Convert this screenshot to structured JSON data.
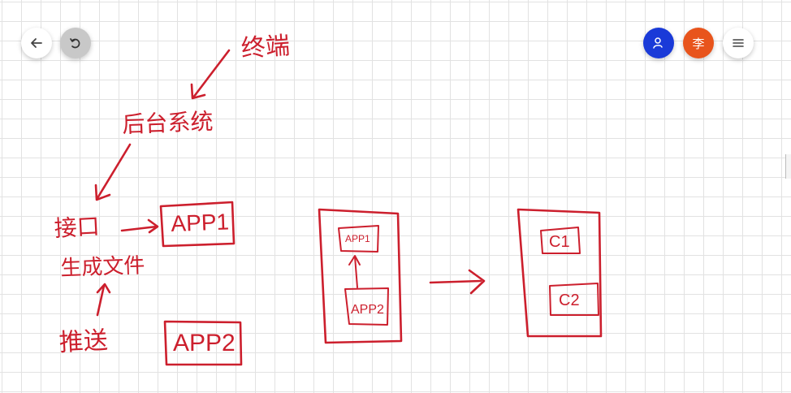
{
  "toolbar": {
    "back_icon": "arrow-left-icon",
    "undo_icon": "undo-icon",
    "user_icon": "user-icon",
    "avatar_text": "李",
    "menu_icon": "menu-icon",
    "colors": {
      "user_button": "#1a3ad8",
      "avatar": "#e8541c",
      "neutral": "#ffffff",
      "undo_bg": "#c8c8c8"
    }
  },
  "whiteboard": {
    "ink_color": "#cc1f2d",
    "notes": {
      "top_label": "终端",
      "middle_label": "后台系统",
      "interface_label": "接口",
      "generate_label": "生成文件",
      "push_label": "推送"
    },
    "boxes": {
      "app1": "APP1",
      "app2": "APP2",
      "inner_app1": "APP1",
      "inner_app2": "APP2",
      "c1": "C1",
      "c2": "C2"
    }
  }
}
